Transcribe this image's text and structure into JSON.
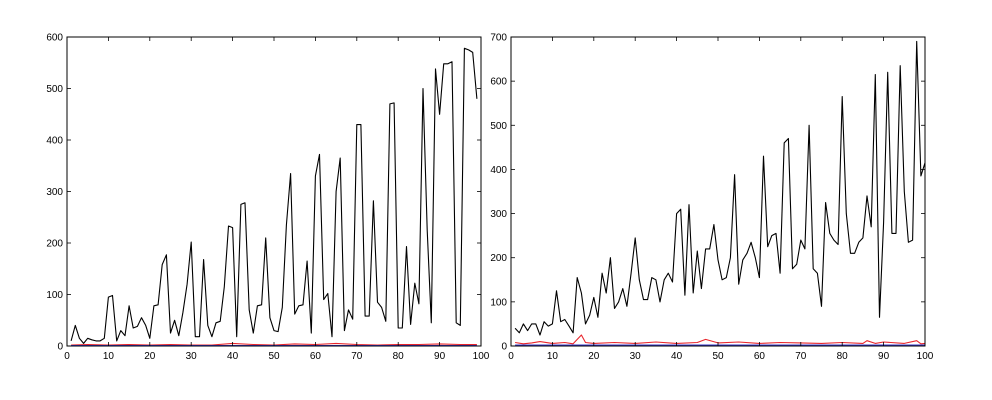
{
  "chart_data": [
    {
      "type": "line",
      "xlim": [
        0,
        100
      ],
      "ylim": [
        0,
        600
      ],
      "xticks": [
        0,
        10,
        20,
        30,
        40,
        50,
        60,
        70,
        80,
        90,
        100
      ],
      "yticks": [
        0,
        100,
        200,
        300,
        400,
        500,
        600
      ],
      "grid": false,
      "series": [
        {
          "color": "#000000",
          "x": [
            1,
            2,
            3,
            4,
            5,
            6,
            7,
            8,
            9,
            10,
            11,
            12,
            13,
            14,
            15,
            16,
            17,
            18,
            19,
            20,
            21,
            22,
            23,
            24,
            25,
            26,
            27,
            28,
            29,
            30,
            31,
            32,
            33,
            34,
            35,
            36,
            37,
            38,
            39,
            40,
            41,
            42,
            43,
            44,
            45,
            46,
            47,
            48,
            49,
            50,
            51,
            52,
            53,
            54,
            55,
            56,
            57,
            58,
            59,
            60,
            61,
            62,
            63,
            64,
            65,
            66,
            67,
            68,
            69,
            70,
            71,
            72,
            73,
            74,
            75,
            76,
            77,
            78,
            79,
            80,
            81,
            82,
            83,
            84,
            85,
            86,
            87,
            88,
            89,
            90,
            91,
            92,
            93,
            94,
            95,
            96,
            97,
            98,
            99
          ],
          "y": [
            10,
            40,
            15,
            5,
            15,
            12,
            10,
            10,
            15,
            95,
            98,
            10,
            30,
            20,
            78,
            35,
            38,
            55,
            40,
            15,
            78,
            80,
            158,
            177,
            25,
            50,
            20,
            65,
            120,
            202,
            18,
            18,
            168,
            40,
            18,
            45,
            48,
            115,
            233,
            230,
            18,
            275,
            278,
            70,
            25,
            78,
            80,
            210,
            55,
            30,
            28,
            75,
            235,
            335,
            62,
            78,
            80,
            165,
            25,
            330,
            372,
            90,
            102,
            18,
            300,
            365,
            30,
            70,
            52,
            430,
            430,
            58,
            58,
            282,
            85,
            75,
            48,
            470,
            472,
            35,
            35,
            193,
            42,
            122,
            82,
            500,
            225,
            45,
            538,
            450,
            548,
            548,
            552,
            45,
            40,
            578,
            575,
            570,
            480
          ],
          "y_note": ""
        },
        {
          "color": "#e8262c",
          "x": [
            1,
            5,
            10,
            15,
            20,
            25,
            30,
            35,
            40,
            45,
            50,
            55,
            60,
            65,
            70,
            75,
            80,
            85,
            90,
            95,
            99
          ],
          "y": [
            2,
            3,
            2,
            3,
            2,
            3,
            2,
            2,
            5,
            3,
            2,
            4,
            3,
            5,
            3,
            2,
            3,
            3,
            4,
            3,
            3
          ]
        },
        {
          "color": "#3a3ad0",
          "x": [
            1,
            99
          ],
          "y": [
            1,
            1
          ]
        }
      ]
    },
    {
      "type": "line",
      "xlim": [
        0,
        100
      ],
      "ylim": [
        0,
        700
      ],
      "xticks": [
        0,
        10,
        20,
        30,
        40,
        50,
        60,
        70,
        80,
        90,
        100
      ],
      "yticks": [
        0,
        100,
        200,
        300,
        400,
        500,
        600,
        700
      ],
      "grid": false,
      "series": [
        {
          "color": "#000000",
          "x": [
            1,
            2,
            3,
            4,
            5,
            6,
            7,
            8,
            9,
            10,
            11,
            12,
            13,
            14,
            15,
            16,
            17,
            18,
            19,
            20,
            21,
            22,
            23,
            24,
            25,
            26,
            27,
            28,
            29,
            30,
            31,
            32,
            33,
            34,
            35,
            36,
            37,
            38,
            39,
            40,
            41,
            42,
            43,
            44,
            45,
            46,
            47,
            48,
            49,
            50,
            51,
            52,
            53,
            54,
            55,
            56,
            57,
            58,
            59,
            60,
            61,
            62,
            63,
            64,
            65,
            66,
            67,
            68,
            69,
            70,
            71,
            72,
            73,
            74,
            75,
            76,
            77,
            78,
            79,
            80,
            81,
            82,
            83,
            84,
            85,
            86,
            87,
            88,
            89,
            90,
            91,
            92,
            93,
            94,
            95,
            96,
            97,
            98,
            99,
            100
          ],
          "y": [
            40,
            30,
            50,
            35,
            50,
            50,
            25,
            55,
            45,
            50,
            125,
            55,
            60,
            45,
            30,
            155,
            120,
            50,
            70,
            110,
            65,
            165,
            120,
            200,
            85,
            100,
            130,
            90,
            165,
            245,
            150,
            105,
            105,
            155,
            150,
            100,
            150,
            165,
            145,
            300,
            310,
            115,
            320,
            120,
            215,
            130,
            220,
            220,
            275,
            195,
            150,
            155,
            200,
            388,
            140,
            195,
            210,
            235,
            200,
            155,
            430,
            225,
            250,
            255,
            165,
            460,
            470,
            175,
            185,
            240,
            220,
            500,
            175,
            165,
            90,
            325,
            255,
            240,
            230,
            565,
            300,
            210,
            210,
            235,
            245,
            340,
            270,
            615,
            65,
            280,
            620,
            255,
            255,
            635,
            350,
            235,
            240,
            690,
            385,
            415
          ],
          "y_note": ""
        },
        {
          "color": "#e8262c",
          "x": [
            1,
            3,
            5,
            7,
            10,
            13,
            15,
            17,
            18,
            20,
            25,
            30,
            35,
            40,
            45,
            47,
            50,
            55,
            60,
            65,
            70,
            75,
            80,
            85,
            86,
            88,
            90,
            95,
            98,
            99,
            100
          ],
          "y": [
            8,
            5,
            7,
            10,
            6,
            8,
            5,
            25,
            8,
            6,
            8,
            6,
            9,
            6,
            8,
            15,
            7,
            9,
            6,
            8,
            7,
            6,
            8,
            6,
            12,
            6,
            9,
            6,
            12,
            5,
            6
          ]
        },
        {
          "color": "#3a3ad0",
          "x": [
            1,
            100
          ],
          "y": [
            2,
            2
          ]
        }
      ]
    }
  ]
}
